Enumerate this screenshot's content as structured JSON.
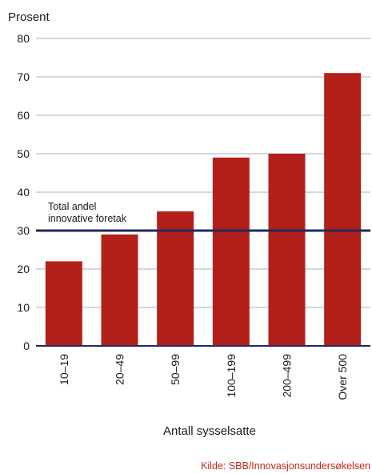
{
  "chart_data": {
    "type": "bar",
    "ylabel": "Prosent",
    "xlabel": "Antall sysselsatte",
    "categories": [
      "10–19",
      "20–49",
      "50–99",
      "100–199",
      "200–499",
      "Over 500"
    ],
    "values": [
      22,
      29,
      35,
      49,
      50,
      71
    ],
    "ylim": [
      0,
      80
    ],
    "yticks": [
      0,
      10,
      20,
      30,
      40,
      50,
      60,
      70,
      80
    ],
    "grid": true,
    "bar_color": "#b31f19",
    "reference_line": {
      "value": 30,
      "label_lines": [
        "Total andel",
        "innovative foretak"
      ],
      "color": "#1f2a5e"
    },
    "source": "Kilde: SBB/Innovasjonsundersøkelsen",
    "source_color": "#c0281e"
  }
}
